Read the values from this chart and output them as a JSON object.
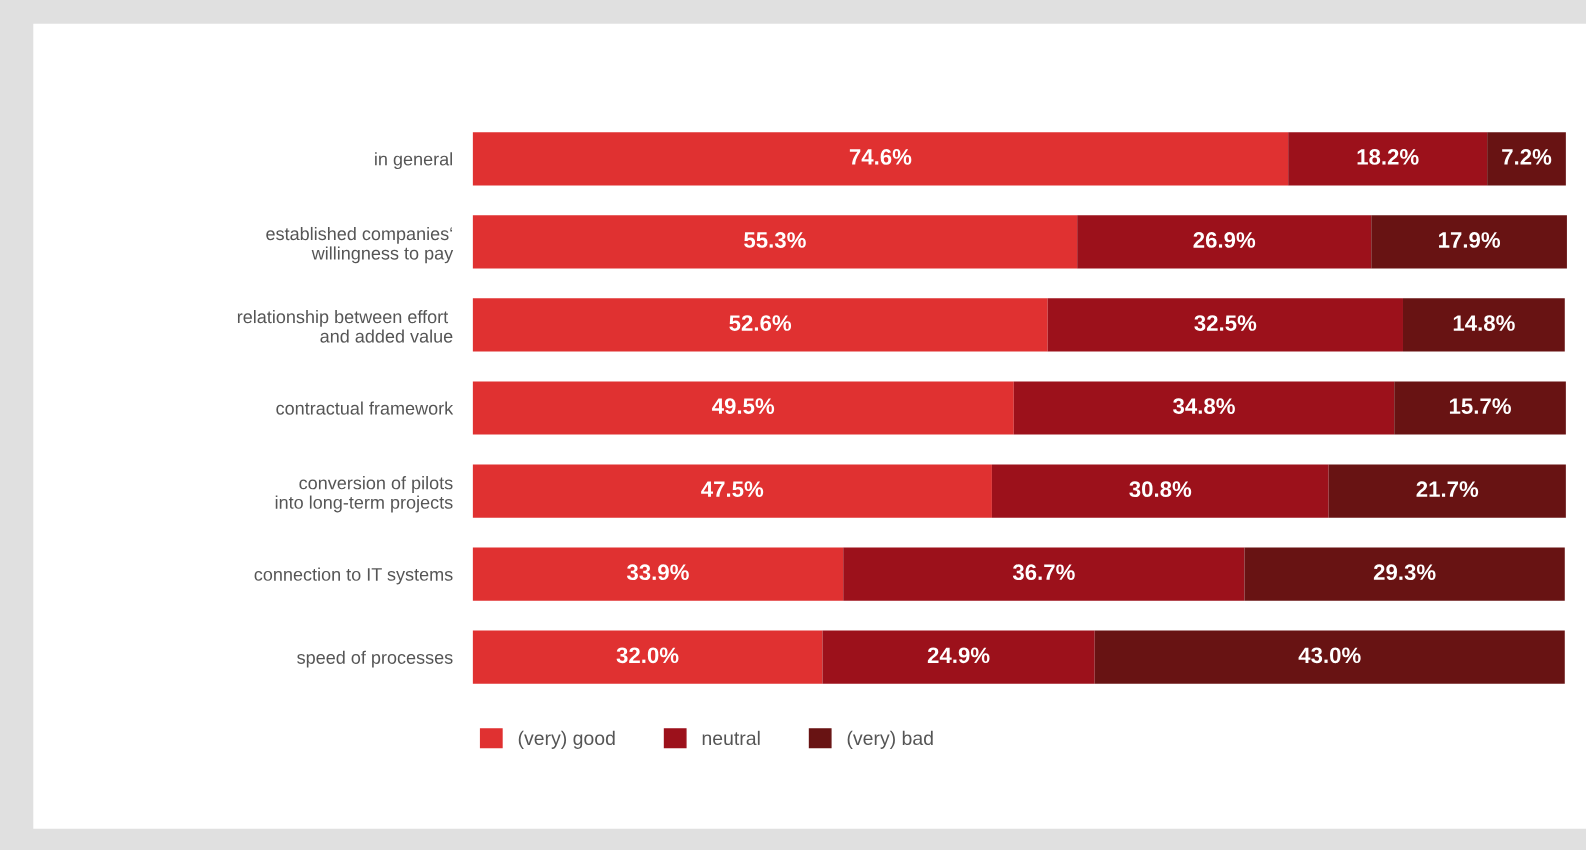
{
  "chart_data": {
    "type": "bar",
    "orientation": "horizontal",
    "stacked": true,
    "legend": "bottom",
    "categories": [
      "in general",
      "established companies‘\nwillingness to pay",
      "relationship between effort \nand added value",
      "contractual framework",
      "conversion of pilots\ninto long-term projects",
      "connection to IT systems",
      "speed of processes"
    ],
    "series": [
      {
        "name": "(very) good",
        "color": "#e03131",
        "values": [
          74.6,
          55.3,
          52.6,
          49.5,
          47.5,
          33.9,
          32.0
        ],
        "value_labels": [
          "74.6%",
          "55.3%",
          "52.6%",
          "49.5%",
          "47.5%",
          "33.9%",
          "32.0%"
        ]
      },
      {
        "name": "neutral",
        "color": "#9c111b",
        "values": [
          18.2,
          26.9,
          32.5,
          34.8,
          30.8,
          36.7,
          24.9
        ],
        "value_labels": [
          "18.2%",
          "26.9%",
          "32.5%",
          "34.8%",
          "30.8%",
          "36.7%",
          "24.9%"
        ]
      },
      {
        "name": "(very) bad",
        "color": "#681313",
        "values": [
          7.2,
          17.9,
          14.8,
          15.7,
          21.7,
          29.3,
          43.0
        ],
        "value_labels": [
          "7.2%",
          "17.9%",
          "14.8%",
          "15.7%",
          "21.7%",
          "29.3%",
          "43.0%"
        ]
      }
    ]
  }
}
